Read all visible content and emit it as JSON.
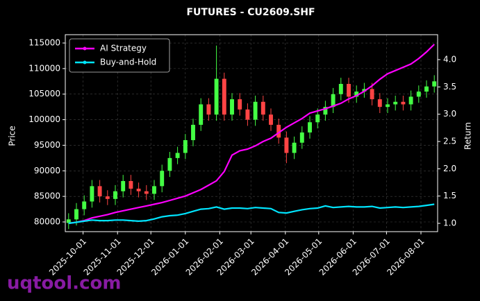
{
  "chart_data": {
    "type": "candlestick",
    "title": "FUTURES - CU2609.SHF",
    "ylabel": "Price",
    "y2label": "Return",
    "x": [
      "2025-09-18",
      "2025-09-25",
      "2025-10-02",
      "2025-10-09",
      "2025-10-16",
      "2025-10-23",
      "2025-10-30",
      "2025-11-06",
      "2025-11-13",
      "2025-11-20",
      "2025-11-27",
      "2025-12-04",
      "2025-12-11",
      "2025-12-18",
      "2025-12-25",
      "2026-01-01",
      "2026-01-08",
      "2026-01-15",
      "2026-01-22",
      "2026-01-29",
      "2026-02-05",
      "2026-02-12",
      "2026-02-19",
      "2026-02-26",
      "2026-03-05",
      "2026-03-12",
      "2026-03-19",
      "2026-03-26",
      "2026-04-02",
      "2026-04-09",
      "2026-04-16",
      "2026-04-23",
      "2026-04-30",
      "2026-05-07",
      "2026-05-14",
      "2026-05-21",
      "2026-05-28",
      "2026-06-04",
      "2026-06-11",
      "2026-06-18",
      "2026-06-25",
      "2026-07-02",
      "2026-07-09",
      "2026-07-16",
      "2026-07-23",
      "2026-07-30",
      "2026-08-06",
      "2026-08-13"
    ],
    "open": [
      79800,
      80500,
      82500,
      84000,
      87000,
      85000,
      84500,
      86000,
      88000,
      86500,
      86000,
      85500,
      87000,
      90000,
      92500,
      93500,
      96000,
      99000,
      103000,
      101000,
      108000,
      101000,
      104000,
      102000,
      100000,
      103500,
      101000,
      99000,
      96500,
      93500,
      95500,
      97500,
      99500,
      101000,
      102500,
      105000,
      107000,
      104500,
      105500,
      106000,
      104000,
      102500,
      103000,
      103500,
      103000,
      104500,
      105500,
      106500
    ],
    "high": [
      81700,
      83700,
      85200,
      88200,
      88200,
      86200,
      87200,
      89200,
      89200,
      87700,
      87200,
      88200,
      91200,
      93700,
      94700,
      97200,
      100200,
      104200,
      104200,
      114500,
      109200,
      105200,
      105200,
      103200,
      104700,
      104700,
      102200,
      100200,
      97700,
      96700,
      98700,
      100700,
      102200,
      103700,
      106200,
      108200,
      108200,
      106700,
      107200,
      107200,
      105200,
      104200,
      104700,
      104700,
      105700,
      106700,
      107700,
      108700
    ],
    "low": [
      78600,
      79300,
      81300,
      82800,
      83800,
      83300,
      83300,
      84800,
      85300,
      84800,
      84300,
      84300,
      85800,
      88800,
      91300,
      92300,
      94800,
      97800,
      99800,
      99800,
      99800,
      99800,
      100800,
      98800,
      98800,
      99800,
      97800,
      95300,
      91500,
      92300,
      94300,
      96300,
      98300,
      99800,
      101300,
      103800,
      103300,
      103300,
      104300,
      102800,
      101300,
      101300,
      101800,
      101800,
      101800,
      103300,
      104300,
      105300
    ],
    "close": [
      80500,
      82500,
      84000,
      87000,
      85000,
      84500,
      86000,
      88000,
      86500,
      86000,
      85500,
      87000,
      90000,
      92500,
      93500,
      96000,
      99000,
      103000,
      101000,
      108000,
      101000,
      104000,
      102000,
      100000,
      103500,
      101000,
      99000,
      96500,
      93500,
      95500,
      97500,
      99500,
      101000,
      102500,
      105000,
      107000,
      104500,
      105500,
      106000,
      104000,
      102500,
      103000,
      103500,
      103000,
      104500,
      105500,
      106500,
      107500
    ],
    "up_color": "#44ff44",
    "down_color": "#ff4444",
    "series": [
      {
        "name": "AI Strategy",
        "color": "#ff00ff",
        "axis": "y2",
        "values": [
          1.0,
          1.02,
          1.05,
          1.1,
          1.13,
          1.16,
          1.2,
          1.23,
          1.26,
          1.29,
          1.32,
          1.35,
          1.38,
          1.42,
          1.46,
          1.5,
          1.56,
          1.62,
          1.7,
          1.78,
          1.95,
          2.25,
          2.33,
          2.36,
          2.42,
          2.5,
          2.56,
          2.66,
          2.76,
          2.84,
          2.92,
          3.02,
          3.06,
          3.1,
          3.15,
          3.2,
          3.28,
          3.34,
          3.42,
          3.52,
          3.64,
          3.74,
          3.8,
          3.86,
          3.92,
          4.02,
          4.14,
          4.28
        ]
      },
      {
        "name": "Buy-and-Hold",
        "color": "#00e5ff",
        "axis": "y2",
        "values": [
          1.0,
          1.02,
          1.04,
          1.06,
          1.05,
          1.05,
          1.06,
          1.06,
          1.05,
          1.04,
          1.05,
          1.08,
          1.12,
          1.14,
          1.15,
          1.18,
          1.22,
          1.26,
          1.27,
          1.3,
          1.26,
          1.28,
          1.28,
          1.27,
          1.29,
          1.28,
          1.27,
          1.2,
          1.19,
          1.22,
          1.25,
          1.27,
          1.28,
          1.32,
          1.29,
          1.3,
          1.31,
          1.3,
          1.3,
          1.31,
          1.28,
          1.29,
          1.3,
          1.29,
          1.3,
          1.31,
          1.33,
          1.35
        ]
      }
    ],
    "xlim": [
      "2025-09-15",
      "2026-08-16"
    ],
    "xticks": [
      "2025-10-01",
      "2025-11-01",
      "2025-12-01",
      "2026-01-01",
      "2026-02-01",
      "2026-03-01",
      "2026-04-01",
      "2026-05-01",
      "2026-06-01",
      "2026-07-01",
      "2026-08-01"
    ],
    "ylim": [
      78100,
      116630
    ],
    "yticks": [
      80000,
      85000,
      90000,
      95000,
      100000,
      105000,
      110000,
      115000
    ],
    "y2lim": [
      0.848,
      4.457
    ],
    "y2ticks": [
      {
        "value": 1,
        "label": "1.0"
      },
      {
        "value": 1.5,
        "label": "1.5"
      },
      {
        "value": 2,
        "label": "2.0"
      },
      {
        "value": 2.5,
        "label": "2.5"
      },
      {
        "value": 3,
        "label": "3.0"
      },
      {
        "value": 3.5,
        "label": "3.5"
      },
      {
        "value": 4,
        "label": "4.0"
      }
    ],
    "grid": true,
    "legend": "upper left"
  },
  "watermark": "uqtool.com"
}
